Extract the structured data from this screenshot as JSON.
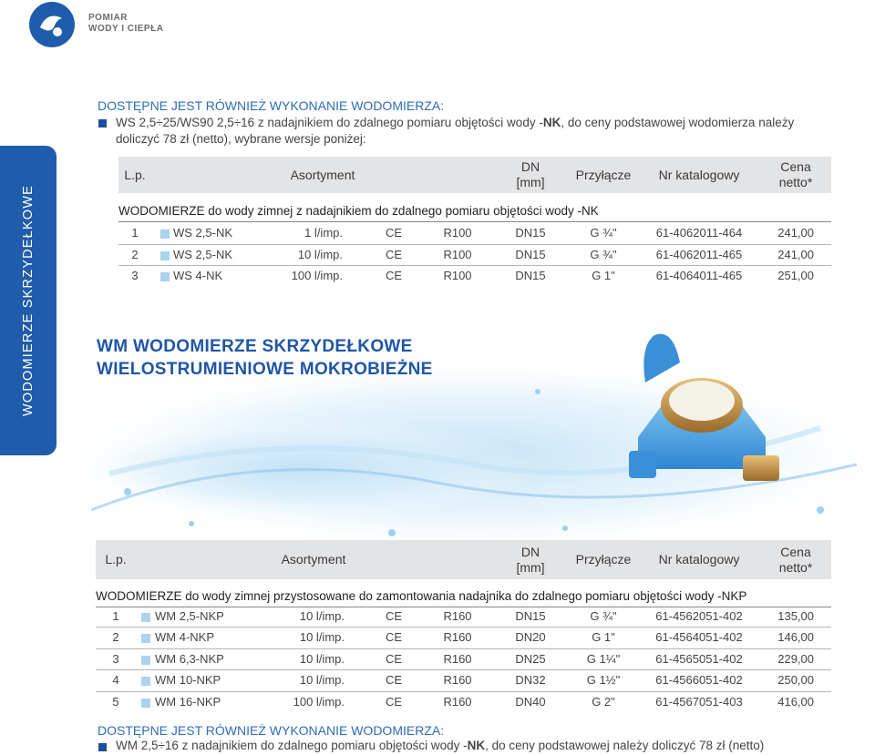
{
  "header": {
    "brand": [
      "POMIAR",
      "WODY I CIEPŁA"
    ]
  },
  "side_tab": "WODOMIERZE SKRZYDEŁKOWE",
  "note1": {
    "heading": "DOSTĘPNE JEST RÓWNIEŻ WYKONANIE WODOMIERZA:",
    "text_before": "WS 2,5÷25/WS90 2,5÷16 z nadajnikiem do zdalnego pomiaru objętości wody -",
    "emphasis": "NK",
    "text_after": ", do ceny podstawowej wodomierza należy doliczyć 78 zł (netto), wybrane wersje poniżej:"
  },
  "table1": {
    "headers": [
      [
        "L.p."
      ],
      [
        "Asortyment"
      ],
      [
        "DN",
        "[mm]"
      ],
      [
        "Przyłącze"
      ],
      [
        "Nr katalogowy"
      ],
      [
        "Cena",
        "netto*"
      ]
    ],
    "section": "WODOMIERZE do wody zimnej z nadajnikiem do zdalnego pomiaru objętości wody -NK",
    "rows": [
      [
        "1",
        "WS 2,5-NK",
        "1 l/imp.",
        "CE",
        "R100",
        "DN15",
        "G ¾\"",
        "61-4062011-464",
        "241,00"
      ],
      [
        "2",
        "WS 2,5-NK",
        "10 l/imp.",
        "CE",
        "R100",
        "DN15",
        "G ¾\"",
        "61-4062011-465",
        "241,00"
      ],
      [
        "3",
        "WS 4-NK",
        "100 l/imp.",
        "CE",
        "R100",
        "DN15",
        "G 1\"",
        "61-4064011-465",
        "251,00"
      ]
    ]
  },
  "product_title": [
    "WM WODOMIERZE SKRZYDEŁKOWE",
    "WIELOSTRUMIENIOWE MOKROBIEŻNE"
  ],
  "table2": {
    "headers": [
      [
        "L.p."
      ],
      [
        "Asortyment"
      ],
      [
        "DN",
        "[mm]"
      ],
      [
        "Przyłącze"
      ],
      [
        "Nr katalogowy"
      ],
      [
        "Cena",
        "netto*"
      ]
    ],
    "section": "WODOMIERZE do wody zimnej przystosowane do zamontowania nadajnika do zdalnego pomiaru objętości wody -NKP",
    "rows": [
      [
        "1",
        "WM 2,5-NKP",
        "10 l/imp.",
        "CE",
        "R160",
        "DN15",
        "G ¾\"",
        "61-4562051-402",
        "135,00"
      ],
      [
        "2",
        "WM 4-NKP",
        "10 l/imp.",
        "CE",
        "R160",
        "DN20",
        "G 1\"",
        "61-4564051-402",
        "146,00"
      ],
      [
        "3",
        "WM 6,3-NKP",
        "10 l/imp.",
        "CE",
        "R160",
        "DN25",
        "G 1¼\"",
        "61-4565051-402",
        "229,00"
      ],
      [
        "4",
        "WM 10-NKP",
        "10 l/imp.",
        "CE",
        "R160",
        "DN32",
        "G 1½\"",
        "61-4566051-402",
        "250,00"
      ],
      [
        "5",
        "WM 16-NKP",
        "100 l/imp.",
        "CE",
        "R160",
        "DN40",
        "G 2\"",
        "61-4567051-403",
        "416,00"
      ]
    ]
  },
  "note2": {
    "heading": "DOSTĘPNE JEST RÓWNIEŻ WYKONANIE WODOMIERZA:",
    "text_before": "WM 2,5÷16 z nadajnikiem do zdalnego pomiaru objętości wody -",
    "emphasis": "NK",
    "text_after": ", do ceny podstawowej należy doliczyć 78 zł (netto)"
  }
}
